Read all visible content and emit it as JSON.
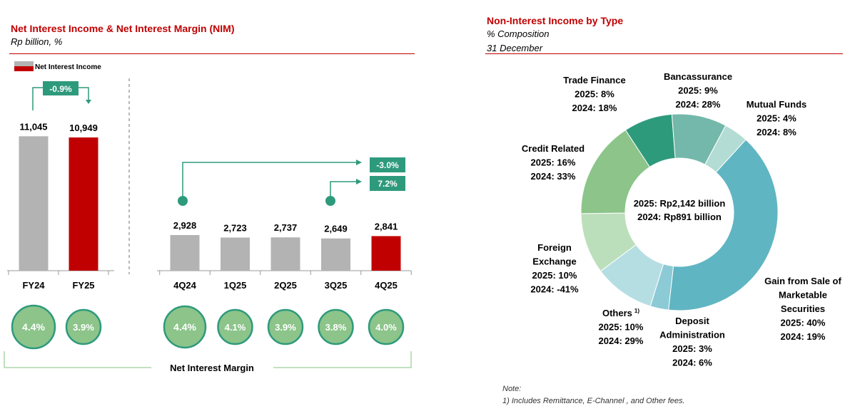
{
  "left": {
    "title": "Net Interest Income & Net Interest Margin (NIM)",
    "subtitle": "Rp billion, %",
    "legend_label": "Net Interest Income",
    "nim_label": "Net Interest Margin",
    "colors": {
      "previous": "#b3b3b3",
      "current": "#c00000",
      "accent": "#2e9a7c",
      "nim_fill": "#8cc48a"
    }
  },
  "right": {
    "title": "Non-Interest Income by Type",
    "subtitle1": "% Composition",
    "subtitle2": "31 December",
    "center_line1": "2025: Rp2,142 billion",
    "center_line2": "2024: Rp891 billion",
    "note_title": "Note:",
    "note_text": "1)  Includes Remittance, E-Channel , and Other fees."
  },
  "chart_data": [
    {
      "type": "bar",
      "title": "Net Interest Income & Net Interest Margin (NIM)",
      "ylabel": "Rp billion",
      "ylim": [
        0,
        12000
      ],
      "groups": [
        {
          "categories": [
            "FY24",
            "FY25"
          ],
          "values": [
            11045,
            10949
          ],
          "value_labels": [
            "11,045",
            "10,949"
          ],
          "highlight": [
            false,
            true
          ],
          "nim": [
            "4.4%",
            "3.9%"
          ],
          "change": "-0.9%"
        },
        {
          "categories": [
            "4Q24",
            "1Q25",
            "2Q25",
            "3Q25",
            "4Q25"
          ],
          "values": [
            2928,
            2723,
            2737,
            2649,
            2841
          ],
          "value_labels": [
            "2,928",
            "2,723",
            "2,737",
            "2,649",
            "2,841"
          ],
          "highlight": [
            false,
            false,
            false,
            false,
            true
          ],
          "nim": [
            "4.4%",
            "4.1%",
            "3.9%",
            "3.8%",
            "4.0%"
          ],
          "changes": [
            {
              "label": "-3.0%",
              "from": "4Q24",
              "to": "4Q25"
            },
            {
              "label": "7.2%",
              "from": "3Q25",
              "to": "4Q25"
            }
          ]
        }
      ]
    },
    {
      "type": "pie",
      "title": "Non-Interest Income by Type",
      "total": {
        "2025": "Rp2,142 billion",
        "2024": "Rp891 billion"
      },
      "slices": [
        {
          "name": "Mutual Funds",
          "value": 4,
          "prev": 8,
          "color": "#b3dcd4",
          "label": [
            "Mutual Funds",
            "2025: 4%",
            "2024: 8%"
          ]
        },
        {
          "name": "Gain from Sale of Marketable Securities",
          "value": 40,
          "prev": 19,
          "color": "#60b5c2",
          "label": [
            "Gain from Sale of",
            "Marketable",
            "Securities",
            "2025: 40%",
            "2024: 19%"
          ]
        },
        {
          "name": "Deposit Administration",
          "value": 3,
          "prev": 6,
          "color": "#8ccad6",
          "label": [
            "Deposit",
            "Administration",
            "2025: 3%",
            "2024: 6%"
          ]
        },
        {
          "name": "Others",
          "value": 10,
          "prev": 29,
          "color": "#b5dee3",
          "label": [
            "Others",
            "2025: 10%",
            "2024: 29%"
          ],
          "sup": "1)"
        },
        {
          "name": "Foreign Exchange",
          "value": 10,
          "prev": -41,
          "color": "#bcdfbb",
          "label": [
            "Foreign",
            "Exchange",
            "2025: 10%",
            "2024: -41%"
          ]
        },
        {
          "name": "Credit Related",
          "value": 16,
          "prev": 33,
          "color": "#8cc48a",
          "label": [
            "Credit Related",
            "2025: 16%",
            "2024: 33%"
          ]
        },
        {
          "name": "Trade Finance",
          "value": 8,
          "prev": 18,
          "color": "#2e9a7c",
          "label": [
            "Trade Finance",
            "2025: 8%",
            "2024: 18%"
          ]
        },
        {
          "name": "Bancassurance",
          "value": 9,
          "prev": 28,
          "color": "#73b8aa",
          "label": [
            "Bancassurance",
            "2025: 9%",
            "2024:  28%"
          ]
        }
      ]
    }
  ]
}
